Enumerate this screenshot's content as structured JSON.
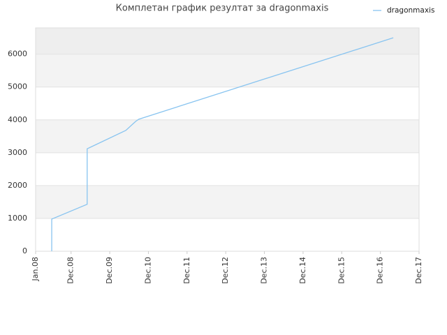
{
  "chart_data": {
    "type": "line",
    "title": "Комплетан график резултат за dragonmaxis",
    "x": [
      "2008-06",
      "2008-06",
      "2009-05",
      "2009-05",
      "2010-05",
      "2010-08",
      "2010-09",
      "2017-04"
    ],
    "series": [
      {
        "name": "dragonmaxis",
        "color": "#88c4f0",
        "values": [
          0,
          980,
          1430,
          3120,
          3680,
          3950,
          4020,
          6500
        ]
      }
    ],
    "xlim": [
      "2008-01",
      "2017-12"
    ],
    "xticks": [
      {
        "value": "2008-01",
        "label": "Jan.08"
      },
      {
        "value": "2008-12",
        "label": "Dec.08"
      },
      {
        "value": "2009-12",
        "label": "Dec.09"
      },
      {
        "value": "2010-12",
        "label": "Dec.10"
      },
      {
        "value": "2011-12",
        "label": "Dec.11"
      },
      {
        "value": "2012-12",
        "label": "Dec.12"
      },
      {
        "value": "2013-12",
        "label": "Dec.13"
      },
      {
        "value": "2014-12",
        "label": "Dec.14"
      },
      {
        "value": "2015-12",
        "label": "Dec.15"
      },
      {
        "value": "2016-12",
        "label": "Dec.16"
      },
      {
        "value": "2017-12",
        "label": "Dec.17"
      }
    ],
    "ylim": [
      0,
      6800
    ],
    "yticks": [
      0,
      1000,
      2000,
      3000,
      4000,
      5000,
      6000
    ],
    "grid": true,
    "legend": "top-right"
  }
}
